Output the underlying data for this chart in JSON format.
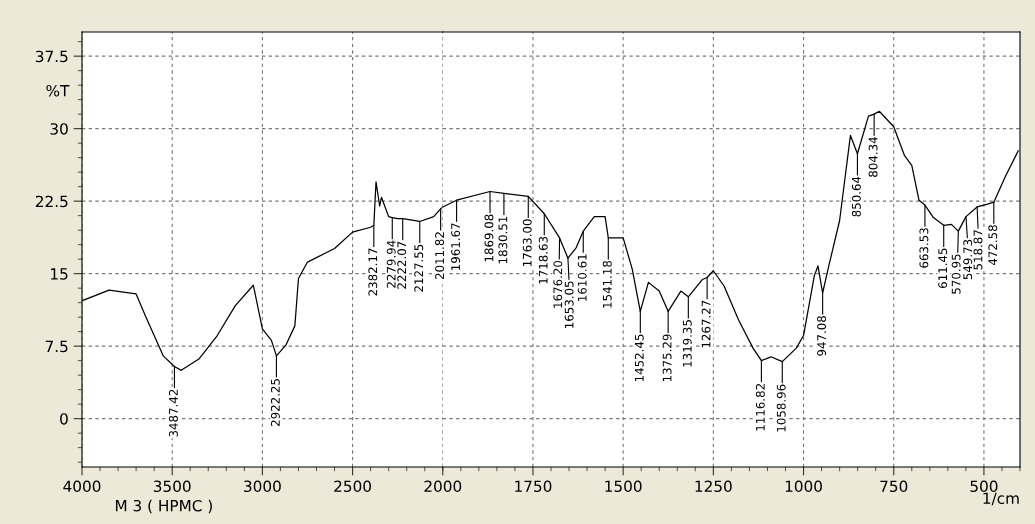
{
  "chart_data": [
    {
      "type": "line",
      "ylabel": "%T",
      "xlim": [
        4000,
        2000
      ],
      "xticks": [
        4000,
        3500,
        3000,
        2500,
        2000
      ],
      "ylim": [
        -5,
        40
      ],
      "yticks": [
        0,
        7.5,
        15,
        22.5,
        30,
        37.5
      ],
      "grid": true,
      "legend": false,
      "line_style": "solid",
      "marker": "none",
      "series": [
        {
          "color": "#000000",
          "x": [
            4000,
            3850,
            3700,
            3650,
            3600,
            3550,
            3487.42,
            3450,
            3350,
            3250,
            3150,
            3050,
            3000,
            2950,
            2922.25,
            2870,
            2820,
            2800,
            2750,
            2600,
            2500,
            2400,
            2382.17,
            2370,
            2350,
            2340,
            2300,
            2279.94,
            2250,
            2222.07,
            2127.55,
            2050,
            2011.82,
            2000
          ],
          "values": [
            12.2,
            13.3,
            12.9,
            10.7,
            8.6,
            6.5,
            5.4,
            5.0,
            6.2,
            8.6,
            11.7,
            13.8,
            9.3,
            8.1,
            6.5,
            7.6,
            9.6,
            14.5,
            16.2,
            17.6,
            19.3,
            19.8,
            20.0,
            24.5,
            22.0,
            22.9,
            20.9,
            20.8,
            20.7,
            20.7,
            20.4,
            20.9,
            21.7,
            21.9
          ]
        }
      ],
      "annotations": [
        "M 3 ( HPMC )",
        {
          "text": "3487.42",
          "x": 3487.42,
          "y": 5.4
        },
        {
          "text": "2922.25",
          "x": 2922.25,
          "y": 6.5
        },
        {
          "text": "2382.17",
          "x": 2382.17,
          "y": 20.0
        },
        {
          "text": "2279.94",
          "x": 2279.94,
          "y": 20.8
        },
        {
          "text": "2222.07",
          "x": 2222.07,
          "y": 20.7
        },
        {
          "text": "2127.55",
          "x": 2127.55,
          "y": 20.4
        },
        {
          "text": "2011.82",
          "x": 2011.82,
          "y": 21.7
        }
      ]
    },
    {
      "type": "line",
      "xlabel": "1/cm",
      "xlim": [
        2000,
        400
      ],
      "xticks": [
        1750,
        1500,
        1250,
        1000,
        750,
        500
      ],
      "ylim": [
        -5,
        40
      ],
      "yticks": [
        0,
        7.5,
        15,
        22.5,
        30,
        37.5
      ],
      "tick_labels": "x",
      "grid": true,
      "legend": false,
      "line_style": "solid",
      "marker": "none",
      "series": [
        {
          "color": "#000000",
          "x": [
            2000,
            1961.67,
            1869.08,
            1830.51,
            1763.0,
            1718.63,
            1676.2,
            1653.05,
            1630,
            1610.61,
            1580,
            1550,
            1541.18,
            1500,
            1475,
            1452.45,
            1430,
            1400,
            1375.29,
            1340,
            1319.35,
            1280,
            1267.27,
            1250,
            1220,
            1180,
            1140,
            1116.82,
            1090,
            1058.96,
            1020,
            1000,
            970,
            960,
            947.08,
            930,
            900,
            870,
            850.64,
            820,
            804.34,
            790,
            750,
            720,
            700,
            680,
            663.53,
            640,
            611.45,
            590,
            570.95,
            549.73,
            518.87,
            490,
            472.58,
            440,
            405
          ],
          "values": [
            21.9,
            22.6,
            23.5,
            23.3,
            23.0,
            21.2,
            18.7,
            16.6,
            17.7,
            19.4,
            20.9,
            20.9,
            18.7,
            18.7,
            15.5,
            11.1,
            14.1,
            13.2,
            11.1,
            13.2,
            12.6,
            14.4,
            14.6,
            15.3,
            13.7,
            10.2,
            7.3,
            6.0,
            6.4,
            5.9,
            7.3,
            8.6,
            14.8,
            15.8,
            13.0,
            15.8,
            20.5,
            29.3,
            27.4,
            31.3,
            31.5,
            31.8,
            30.2,
            27.2,
            26.2,
            22.6,
            22.1,
            20.8,
            20.0,
            20.1,
            19.4,
            20.9,
            21.9,
            22.2,
            22.4,
            25.1,
            27.7
          ]
        }
      ],
      "annotations": [
        {
          "text": "1961.67",
          "x": 1961.67,
          "y": 22.6
        },
        {
          "text": "1869.08",
          "x": 1869.08,
          "y": 23.5
        },
        {
          "text": "1830.51",
          "x": 1830.51,
          "y": 23.3
        },
        {
          "text": "1763.00",
          "x": 1763.0,
          "y": 23.0
        },
        {
          "text": "1718.63",
          "x": 1718.63,
          "y": 21.2
        },
        {
          "text": "1676.20",
          "x": 1676.2,
          "y": 18.7
        },
        {
          "text": "1653.05",
          "x": 1653.05,
          "y": 16.6
        },
        {
          "text": "1610.61",
          "x": 1610.61,
          "y": 19.4
        },
        {
          "text": "1541.18",
          "x": 1541.18,
          "y": 18.7
        },
        {
          "text": "1452.45",
          "x": 1452.45,
          "y": 11.1
        },
        {
          "text": "1375.29",
          "x": 1375.29,
          "y": 11.1
        },
        {
          "text": "1319.35",
          "x": 1319.35,
          "y": 12.6
        },
        {
          "text": "1267.27",
          "x": 1267.27,
          "y": 14.6
        },
        {
          "text": "1116.82",
          "x": 1116.82,
          "y": 6.0
        },
        {
          "text": "1058.96",
          "x": 1058.96,
          "y": 5.9
        },
        {
          "text": "947.08",
          "x": 947.08,
          "y": 13.0
        },
        {
          "text": "850.64",
          "x": 850.64,
          "y": 27.4
        },
        {
          "text": "804.34",
          "x": 804.34,
          "y": 31.5
        },
        {
          "text": "663.53",
          "x": 663.53,
          "y": 22.1
        },
        {
          "text": "611.45",
          "x": 611.45,
          "y": 20.0
        },
        {
          "text": "570.95",
          "x": 570.95,
          "y": 19.4
        },
        {
          "text": "549.73",
          "x": 549.73,
          "y": 20.9
        },
        {
          "text": "518.87",
          "x": 518.87,
          "y": 21.9
        },
        {
          "text": "472.58",
          "x": 472.58,
          "y": 22.4
        }
      ]
    }
  ]
}
